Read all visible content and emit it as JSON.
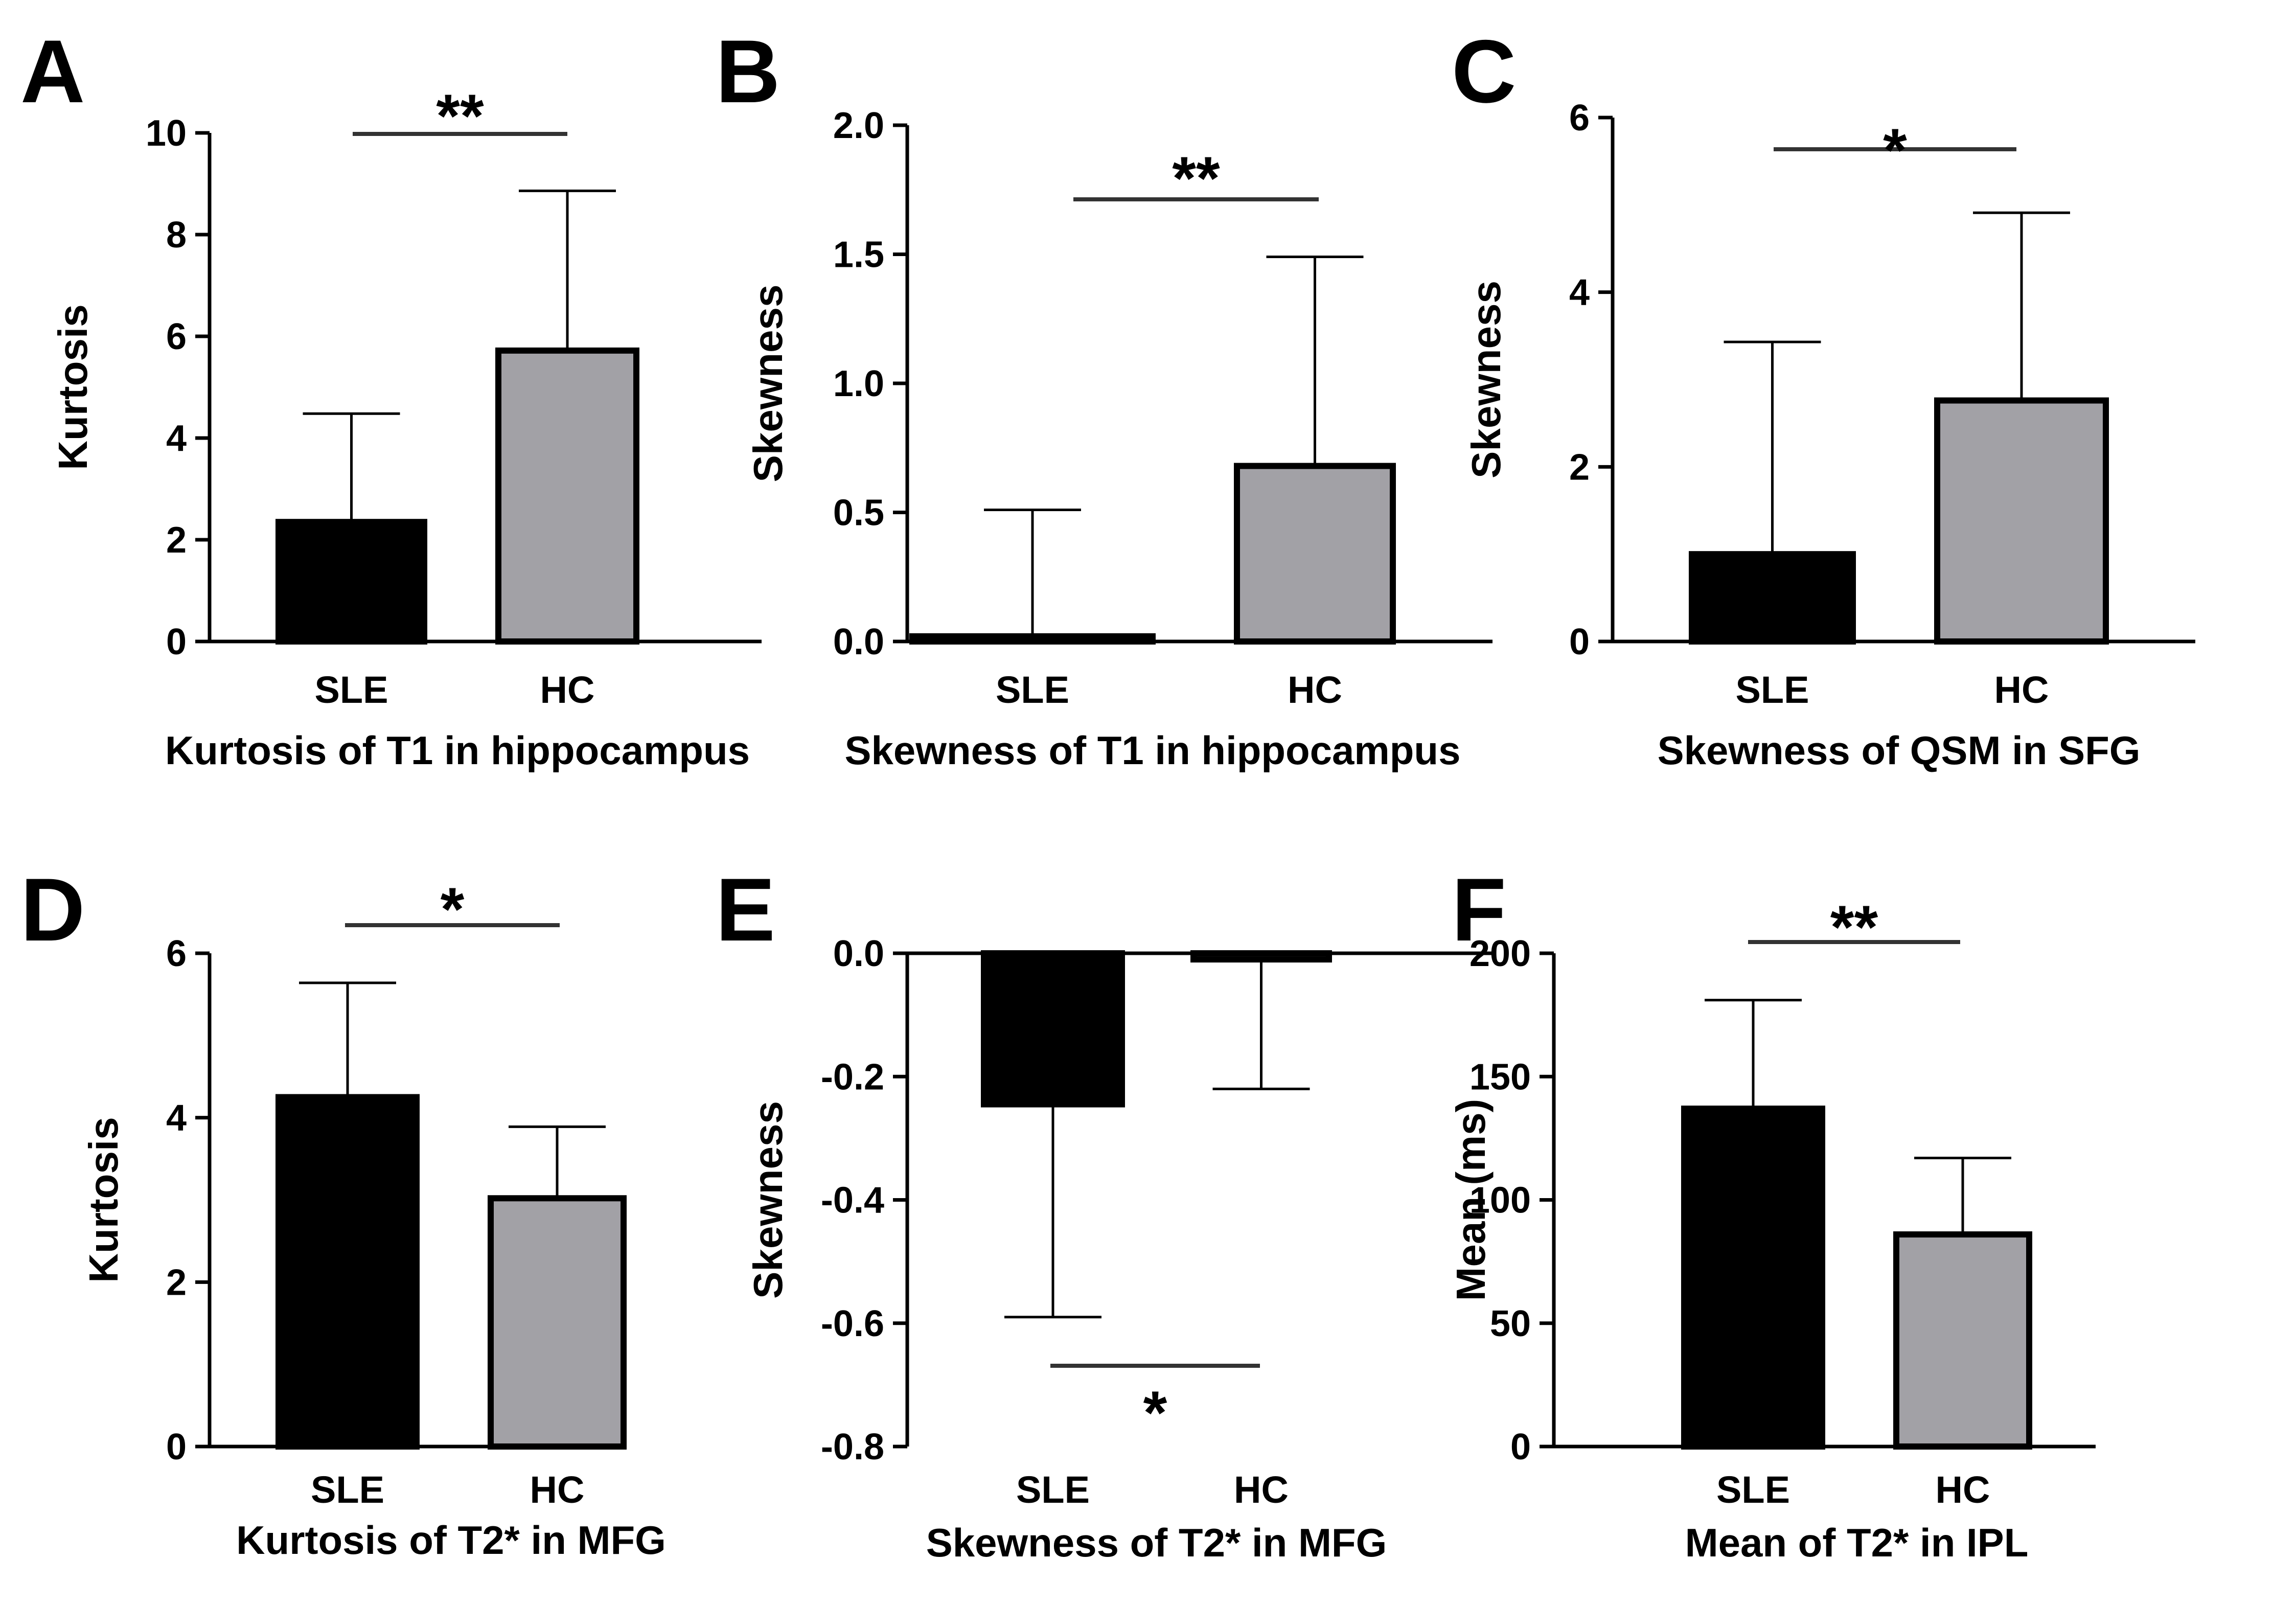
{
  "figure": {
    "panels": [
      "A",
      "B",
      "C",
      "D",
      "E",
      "F"
    ]
  },
  "chart_data": [
    {
      "panel": "A",
      "type": "bar",
      "title": "Kurtosis of T1 in hippocampus",
      "xlabel": "Kurtosis of T1 in hippocampus",
      "ylabel": "Kurtosis",
      "categories": [
        "SLE",
        "HC"
      ],
      "values": [
        2.35,
        5.72
      ],
      "error_upper": [
        4.48,
        8.86
      ],
      "ylim": [
        0,
        10
      ],
      "yticks": [
        "0",
        "2",
        "4",
        "6",
        "8",
        "10"
      ],
      "significance": "**",
      "colors": [
        "#000000",
        "#a2a1a6"
      ]
    },
    {
      "panel": "B",
      "type": "bar",
      "title": "Skewness of T1 in hippocampus",
      "xlabel": "Skewness of T1 in hippocampus",
      "ylabel": "Skewness",
      "categories": [
        "SLE",
        "HC"
      ],
      "values": [
        0.02,
        0.68
      ],
      "error_upper": [
        0.51,
        1.49
      ],
      "ylim": [
        0,
        2
      ],
      "yticks": [
        "0.0",
        "0.5",
        "1.0",
        "1.5",
        "2.0"
      ],
      "significance": "**",
      "colors": [
        "#000000",
        "#a2a1a6"
      ]
    },
    {
      "panel": "C",
      "type": "bar",
      "title": "Skewness of QSM in SFG",
      "xlabel": "Skewness of QSM in SFG",
      "ylabel": "Skewness",
      "categories": [
        "SLE",
        "HC"
      ],
      "values": [
        1.0,
        2.76
      ],
      "error_upper": [
        3.43,
        4.91
      ],
      "ylim": [
        0,
        6
      ],
      "yticks": [
        "0",
        "2",
        "4",
        "6"
      ],
      "significance": "*",
      "colors": [
        "#000000",
        "#a2a1a6"
      ]
    },
    {
      "panel": "D",
      "type": "bar",
      "title": "Kurtosis of T2* in MFG",
      "xlabel": "Kurtosis of T2* in MFG",
      "ylabel": "Kurtosis",
      "categories": [
        "SLE",
        "HC"
      ],
      "values": [
        4.25,
        3.02
      ],
      "error_upper": [
        5.64,
        3.89
      ],
      "ylim": [
        0,
        6
      ],
      "yticks": [
        "0",
        "2",
        "4",
        "6"
      ],
      "significance": "*",
      "colors": [
        "#000000",
        "#a2a1a6"
      ]
    },
    {
      "panel": "E",
      "type": "bar",
      "title": "Skewness of T2* in MFG",
      "xlabel": "Skewness of T2* in MFG",
      "ylabel": "Skewness",
      "categories": [
        "SLE",
        "HC"
      ],
      "values": [
        -0.245,
        -0.01
      ],
      "error_lower": [
        -0.59,
        -0.22
      ],
      "ylim": [
        -0.8,
        0.0
      ],
      "yticks": [
        "-0.8",
        "-0.6",
        "-0.4",
        "-0.2",
        "0.0"
      ],
      "significance": "*",
      "colors": [
        "#000000",
        "#a2a1a6"
      ]
    },
    {
      "panel": "F",
      "type": "bar",
      "title": "Mean of T2* in IPL",
      "xlabel": "Mean of T2* in IPL",
      "ylabel": "Mean (ms)",
      "categories": [
        "SLE",
        "HC"
      ],
      "values": [
        137,
        86
      ],
      "error_upper": [
        181,
        117
      ],
      "ylim": [
        0,
        200
      ],
      "yticks": [
        "0",
        "50",
        "100",
        "150",
        "200"
      ],
      "significance": "**",
      "colors": [
        "#000000",
        "#a2a1a6"
      ]
    }
  ]
}
